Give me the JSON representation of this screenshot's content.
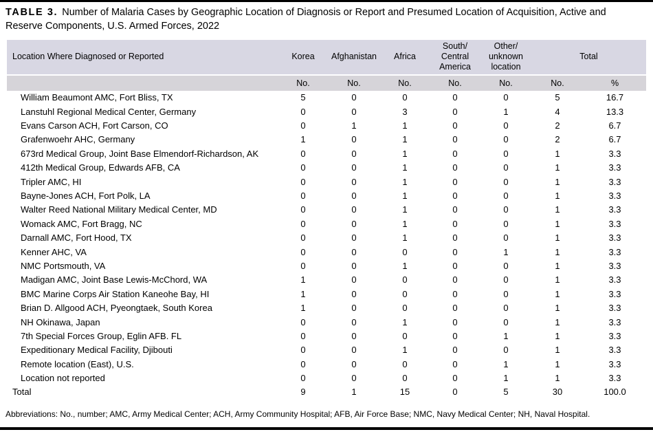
{
  "title": {
    "label": "TABLE 3.",
    "text": "Number of Malaria Cases by Geographic Location of Diagnosis or Report and Presumed Location of Acquisition, Active and Reserve Components, U.S. Armed Forces, 2022"
  },
  "colors": {
    "header_band": "#d8d7e3",
    "subheader_band": "#d6d4d9",
    "rule": "#000000"
  },
  "table": {
    "location_header": "Location Where Diagnosed or Reported",
    "columns": [
      "Korea",
      "Afghanistan",
      "Africa",
      "South/\nCentral\nAmerica",
      "Other/\nunknown\nlocation"
    ],
    "total_label": "Total",
    "unit_no": "No.",
    "unit_pct": "%",
    "rows": [
      {
        "location": "William Beaumont AMC, Fort Bliss, TX",
        "values": [
          "5",
          "0",
          "0",
          "0",
          "0",
          "5",
          "16.7"
        ]
      },
      {
        "location": "Lanstuhl Regional Medical Center, Germany",
        "values": [
          "0",
          "0",
          "3",
          "0",
          "1",
          "4",
          "13.3"
        ]
      },
      {
        "location": "Evans Carson ACH, Fort Carson, CO",
        "values": [
          "0",
          "1",
          "1",
          "0",
          "0",
          "2",
          "6.7"
        ]
      },
      {
        "location": "Grafenwoehr AHC, Germany",
        "values": [
          "1",
          "0",
          "1",
          "0",
          "0",
          "2",
          "6.7"
        ]
      },
      {
        "location": "673rd Medical Group, Joint Base Elmendorf-Richardson, AK",
        "values": [
          "0",
          "0",
          "1",
          "0",
          "0",
          "1",
          "3.3"
        ]
      },
      {
        "location": "412th Medical Group, Edwards AFB, CA",
        "values": [
          "0",
          "0",
          "1",
          "0",
          "0",
          "1",
          "3.3"
        ]
      },
      {
        "location": "Tripler AMC, HI",
        "values": [
          "0",
          "0",
          "1",
          "0",
          "0",
          "1",
          "3.3"
        ]
      },
      {
        "location": "Bayne-Jones ACH, Fort Polk, LA",
        "values": [
          "0",
          "0",
          "1",
          "0",
          "0",
          "1",
          "3.3"
        ]
      },
      {
        "location": "Walter Reed National Military Medical Center, MD",
        "values": [
          "0",
          "0",
          "1",
          "0",
          "0",
          "1",
          "3.3"
        ]
      },
      {
        "location": "Womack AMC, Fort Bragg, NC",
        "values": [
          "0",
          "0",
          "1",
          "0",
          "0",
          "1",
          "3.3"
        ]
      },
      {
        "location": "Darnall AMC, Fort Hood, TX",
        "values": [
          "0",
          "0",
          "1",
          "0",
          "0",
          "1",
          "3.3"
        ]
      },
      {
        "location": "Kenner AHC, VA",
        "values": [
          "0",
          "0",
          "0",
          "0",
          "1",
          "1",
          "3.3"
        ]
      },
      {
        "location": "NMC Portsmouth, VA",
        "values": [
          "0",
          "0",
          "1",
          "0",
          "0",
          "1",
          "3.3"
        ]
      },
      {
        "location": "Madigan AMC, Joint Base Lewis-McChord, WA",
        "values": [
          "1",
          "0",
          "0",
          "0",
          "0",
          "1",
          "3.3"
        ]
      },
      {
        "location": "BMC Marine Corps Air Station Kaneohe Bay, HI",
        "values": [
          "1",
          "0",
          "0",
          "0",
          "0",
          "1",
          "3.3"
        ]
      },
      {
        "location": "Brian D. Allgood ACH, Pyeongtaek, South Korea",
        "values": [
          "1",
          "0",
          "0",
          "0",
          "0",
          "1",
          "3.3"
        ]
      },
      {
        "location": "NH Okinawa, Japan",
        "values": [
          "0",
          "0",
          "1",
          "0",
          "0",
          "1",
          "3.3"
        ]
      },
      {
        "location": "7th Special Forces Group, Eglin AFB. FL",
        "values": [
          "0",
          "0",
          "0",
          "0",
          "1",
          "1",
          "3.3"
        ]
      },
      {
        "location": "Expeditionary Medical Facility, Djibouti",
        "values": [
          "0",
          "0",
          "1",
          "0",
          "0",
          "1",
          "3.3"
        ]
      },
      {
        "location": "Remote location (East), U.S.",
        "values": [
          "0",
          "0",
          "0",
          "0",
          "1",
          "1",
          "3.3"
        ]
      },
      {
        "location": "Location not reported",
        "values": [
          "0",
          "0",
          "0",
          "0",
          "1",
          "1",
          "3.3"
        ]
      }
    ],
    "total_row": {
      "location": "Total",
      "values": [
        "9",
        "1",
        "15",
        "0",
        "5",
        "30",
        "100.0"
      ]
    }
  },
  "footnote": "Abbreviations: No., number; AMC, Army Medical Center; ACH, Army Community Hospital; AFB, Air Force Base; NMC, Navy Medical Center; NH, Naval Hospital."
}
